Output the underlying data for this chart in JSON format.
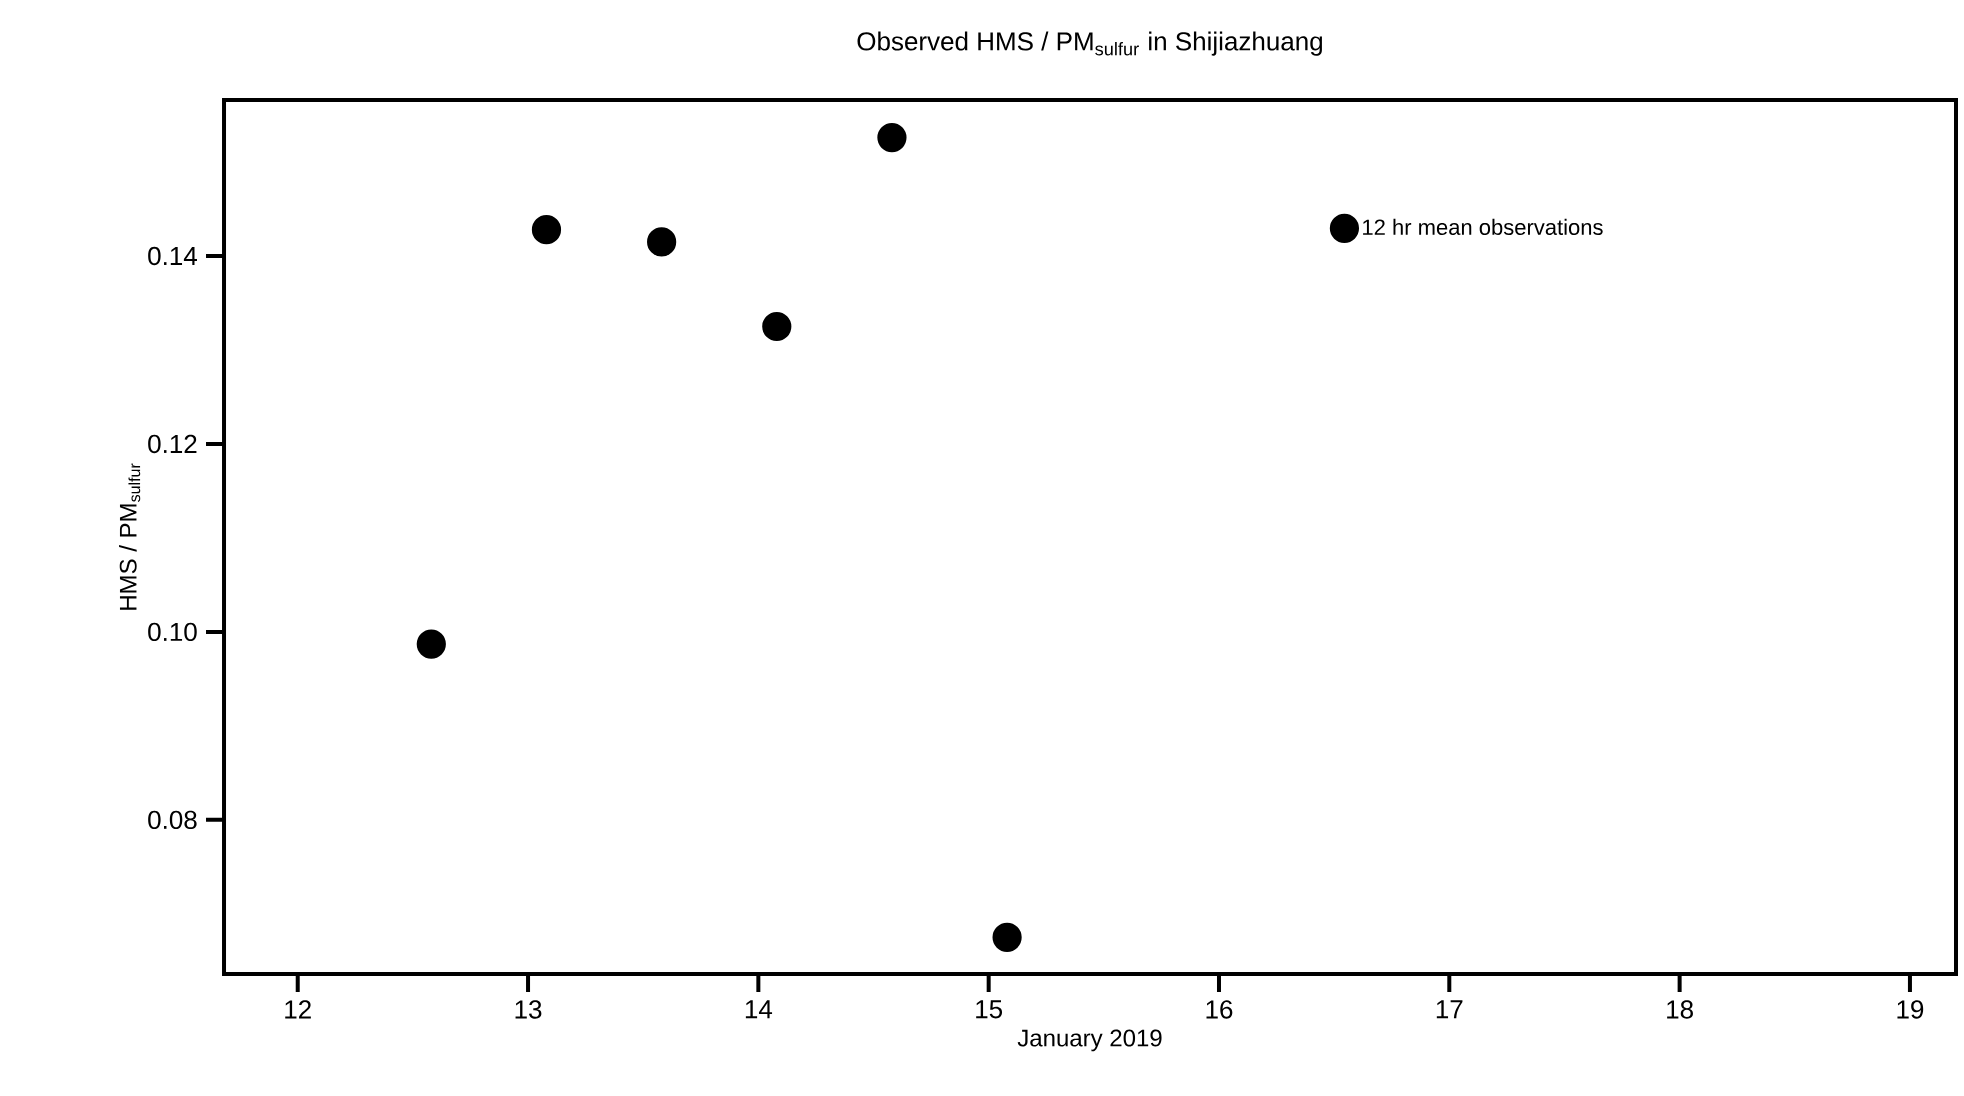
{
  "chart_data": {
    "type": "scatter",
    "title": "Observed HMS / PM$_{sulfur}$ in Shijiazhuang",
    "xlabel": "January 2019",
    "ylabel": "HMS / PM$_{sulfur}$",
    "series": [
      {
        "name": "12 hr mean observations",
        "color": "#000000",
        "x": [
          12.58,
          13.08,
          13.58,
          14.08,
          14.58,
          15.08
        ],
        "values": [
          0.0987,
          0.1428,
          0.1415,
          0.1325,
          0.1526,
          0.0675
        ]
      }
    ],
    "xlim": [
      11.68,
      19.2
    ],
    "ylim": [
      0.0636,
      0.1566
    ],
    "xticks": [
      12,
      13,
      14,
      15,
      16,
      17,
      18,
      19
    ],
    "yticks": [
      0.08,
      {
        "value": 0.1,
        "label": "0.10"
      },
      0.12,
      0.14
    ],
    "marker": "circle",
    "grid": false,
    "legend": "top right"
  }
}
